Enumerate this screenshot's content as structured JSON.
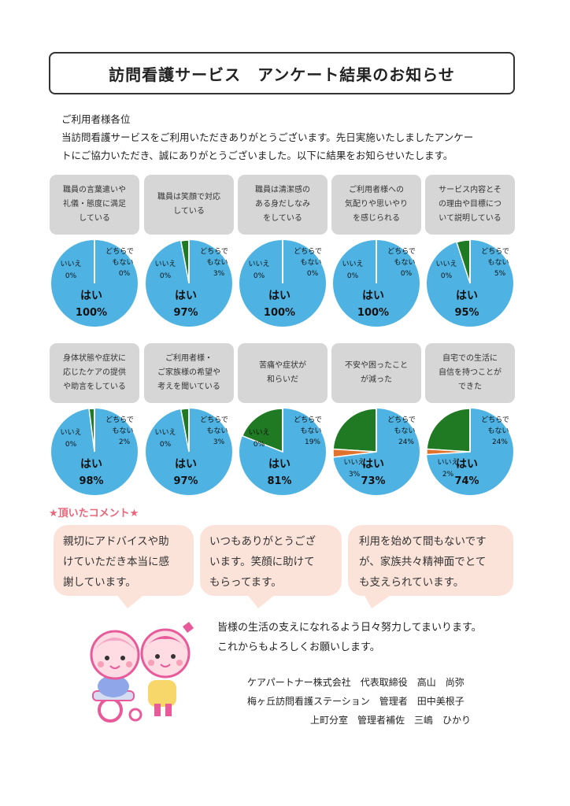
{
  "title": "訪問看護サービス　アンケート結果のお知らせ",
  "intro": {
    "greeting": "ご利用者様各位",
    "line1": "当訪問看護サービスをご利用いただきありがとうございます。先日実施いたしましたアンケー",
    "line2": "トにご協力いただき、誠にありがとうございました。以下に結果をお知らせいたします。"
  },
  "colors": {
    "yes": "#4eb3e3",
    "neutral": "#1f7a23",
    "no": "#e0722d",
    "comment_bg": "#fbe3da",
    "accent": "#e8657a"
  },
  "chart_data": [
    {
      "type": "pie",
      "question": [
        "職員の言葉遣いや",
        "礼儀・態度に満足",
        "している"
      ],
      "slices": [
        {
          "label": "はい",
          "value": 100
        },
        {
          "label": "どちらでもない",
          "value": 0
        },
        {
          "label": "いいえ",
          "value": 0
        }
      ]
    },
    {
      "type": "pie",
      "question": [
        "職員は笑顔で対応",
        "している"
      ],
      "slices": [
        {
          "label": "はい",
          "value": 97
        },
        {
          "label": "どちらでもない",
          "value": 3
        },
        {
          "label": "いいえ",
          "value": 0
        }
      ]
    },
    {
      "type": "pie",
      "question": [
        "職員は清潔感の",
        "ある身だしなみ",
        "をしている"
      ],
      "slices": [
        {
          "label": "はい",
          "value": 100
        },
        {
          "label": "どちらでもない",
          "value": 0
        },
        {
          "label": "いいえ",
          "value": 0
        }
      ]
    },
    {
      "type": "pie",
      "question": [
        "ご利用者様への",
        "気配りや思いやり",
        "を感じられる"
      ],
      "slices": [
        {
          "label": "はい",
          "value": 100
        },
        {
          "label": "どちらでもない",
          "value": 0
        },
        {
          "label": "いいえ",
          "value": 0
        }
      ]
    },
    {
      "type": "pie",
      "question": [
        "サービス内容とそ",
        "の理由や目標につ",
        "いて説明している"
      ],
      "slices": [
        {
          "label": "はい",
          "value": 95
        },
        {
          "label": "どちらでもない",
          "value": 5
        },
        {
          "label": "いいえ",
          "value": 0
        }
      ]
    },
    {
      "type": "pie",
      "question": [
        "身体状態や症状に",
        "応じたケアの提供",
        "や助言をしている"
      ],
      "slices": [
        {
          "label": "はい",
          "value": 98
        },
        {
          "label": "どちらでもない",
          "value": 2
        },
        {
          "label": "いいえ",
          "value": 0
        }
      ]
    },
    {
      "type": "pie",
      "question": [
        "ご利用者様・",
        "ご家族様の希望や",
        "考えを聞いている"
      ],
      "slices": [
        {
          "label": "はい",
          "value": 97
        },
        {
          "label": "どちらでもない",
          "value": 3
        },
        {
          "label": "いいえ",
          "value": 0
        }
      ]
    },
    {
      "type": "pie",
      "question": [
        "苦痛や症状が",
        "和らいだ"
      ],
      "slices": [
        {
          "label": "はい",
          "value": 81
        },
        {
          "label": "どちらでもない",
          "value": 19
        },
        {
          "label": "いいえ",
          "value": 0
        }
      ]
    },
    {
      "type": "pie",
      "question": [
        "不安や困ったこと",
        "が減った"
      ],
      "slices": [
        {
          "label": "はい",
          "value": 73
        },
        {
          "label": "どちらでもない",
          "value": 24
        },
        {
          "label": "いいえ",
          "value": 3
        }
      ]
    },
    {
      "type": "pie",
      "question": [
        "自宅での生活に",
        "自信を持つことが",
        "できた"
      ],
      "slices": [
        {
          "label": "はい",
          "value": 74
        },
        {
          "label": "どちらでもない",
          "value": 24
        },
        {
          "label": "いいえ",
          "value": 2
        }
      ]
    }
  ],
  "comments": {
    "heading": "★頂いたコメント★",
    "items": [
      [
        "親切にアドバイスや助",
        "けていただき本当に感",
        "謝しています。"
      ],
      [
        "いつもありがとうござ",
        "います。笑顔に助けて",
        "もらってます。"
      ],
      [
        "利用を始めて間もないです",
        "が、家族共々精神面でとて",
        "も支えられています。"
      ]
    ]
  },
  "closing": {
    "line1": "皆様の生活の支えになれるよう日々努力してまいります。",
    "line2": "これからもよろしくお願いします。"
  },
  "signature": {
    "line1": "ケアパートナー株式会社　代表取締役　高山　尚弥",
    "line2": "梅ヶ丘訪問看護ステーション　管理者　田中美根子",
    "line3": "上町分室　管理者補佐　三嶋　ひかり"
  }
}
